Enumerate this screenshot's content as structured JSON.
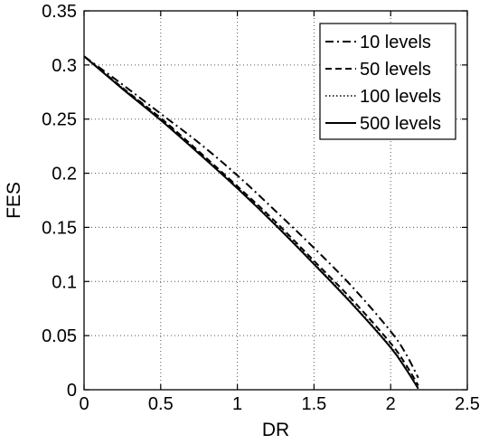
{
  "chart_data": {
    "type": "line",
    "xlabel": "DR",
    "ylabel": "FES",
    "xlim": [
      0,
      2.5
    ],
    "ylim": [
      0,
      0.35
    ],
    "xticks": [
      0,
      0.5,
      1,
      1.5,
      2,
      2.5
    ],
    "yticks": [
      0,
      0.05,
      0.1,
      0.15,
      0.2,
      0.25,
      0.3,
      0.35
    ],
    "xtick_labels": [
      "0",
      "0.5",
      "1",
      "1.5",
      "2",
      "2.5"
    ],
    "ytick_labels": [
      "0",
      "0.05",
      "0.1",
      "0.15",
      "0.2",
      "0.25",
      "0.3",
      "0.35"
    ],
    "grid": true,
    "grid_style": "dotted",
    "legend_position": "top-right",
    "series": [
      {
        "name": "10 levels",
        "line_style": "dash-dot",
        "color": "#000000",
        "x": [
          0,
          0.25,
          0.5,
          0.75,
          1.0,
          1.25,
          1.5,
          1.75,
          2.0,
          2.1,
          2.18
        ],
        "y": [
          0.308,
          0.282,
          0.255,
          0.228,
          0.198,
          0.165,
          0.131,
          0.095,
          0.054,
          0.033,
          0.011
        ]
      },
      {
        "name": "50 levels",
        "line_style": "dashed",
        "color": "#000000",
        "x": [
          0,
          0.25,
          0.5,
          0.75,
          1.0,
          1.25,
          1.5,
          1.75,
          2.0,
          2.1,
          2.18
        ],
        "y": [
          0.308,
          0.279,
          0.251,
          0.22,
          0.188,
          0.155,
          0.119,
          0.083,
          0.043,
          0.023,
          0.004
        ]
      },
      {
        "name": "100 levels",
        "line_style": "dotted",
        "color": "#000000",
        "x": [
          0,
          0.25,
          0.5,
          0.75,
          1.0,
          1.25,
          1.5,
          1.75,
          2.0,
          2.1,
          2.18
        ],
        "y": [
          0.308,
          0.279,
          0.25,
          0.219,
          0.187,
          0.153,
          0.117,
          0.08,
          0.04,
          0.02,
          0.002
        ]
      },
      {
        "name": "500 levels",
        "line_style": "solid",
        "color": "#000000",
        "x": [
          0,
          0.25,
          0.5,
          0.75,
          1.0,
          1.25,
          1.5,
          1.75,
          2.0,
          2.1,
          2.18
        ],
        "y": [
          0.308,
          0.278,
          0.249,
          0.218,
          0.186,
          0.152,
          0.116,
          0.079,
          0.039,
          0.019,
          0.001
        ]
      }
    ]
  }
}
